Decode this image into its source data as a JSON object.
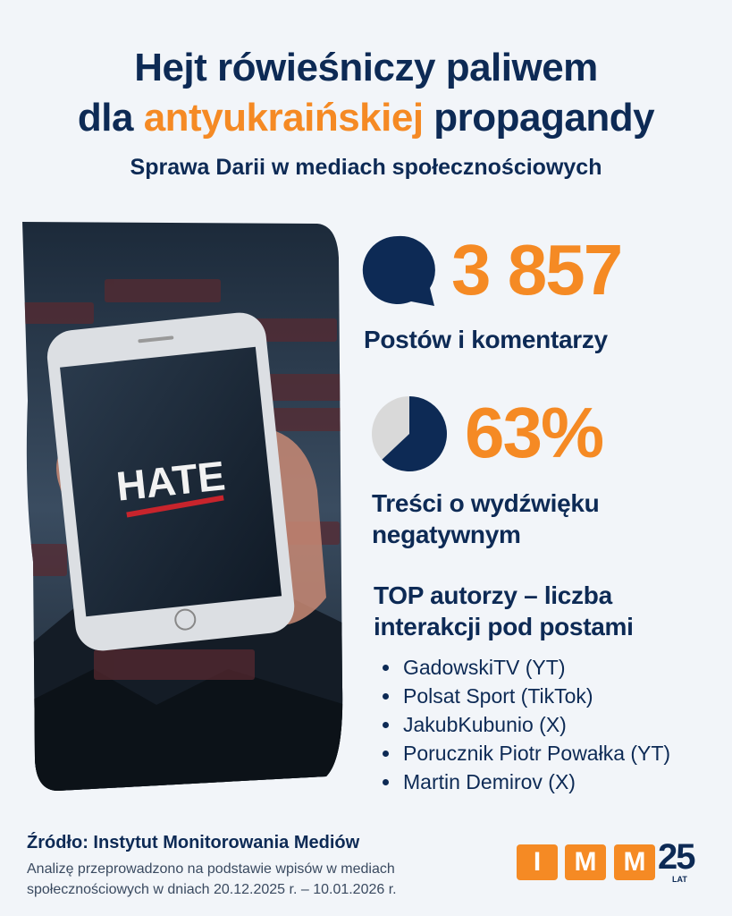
{
  "header": {
    "title_line1": "Hejt rówieśniczy paliwem",
    "title_line2_prefix": "dla ",
    "title_line2_highlight": "antyukraińskiej",
    "title_line2_suffix": " propagandy",
    "subtitle": "Sprawa Darii w mediach społecznościowych"
  },
  "image": {
    "screen_text": "HATE"
  },
  "stats": [
    {
      "value": "3 857",
      "label": "Postów i komentarzy",
      "icon": "speech-bubble-icon"
    },
    {
      "value": "63%",
      "label_line1": "Treści o wydźwięku",
      "label_line2": "negatywnym",
      "icon": "pie-chart-icon",
      "fraction": 0.63
    }
  ],
  "top_authors": {
    "heading_line1": "TOP autorzy – liczba",
    "heading_line2": "interakcji pod postami",
    "items": [
      "GadowskiTV (YT)",
      "Polsat Sport (TikTok)",
      "JakubKubunio (X)",
      "Porucznik Piotr Powałka (YT)",
      "Martin Demirov (X)"
    ]
  },
  "footer": {
    "source": "Źródło: Instytut Monitorowania Mediów",
    "note_line1": "Analizę przeprowadzono na podstawie wpisów w mediach",
    "note_line2": "społecznościowych w dniach 20.12.2025 r. – 10.01.2026 r.",
    "logo_letters": [
      "I",
      "M",
      "M"
    ],
    "logo_years": "25",
    "logo_years_unit": "LAT"
  },
  "colors": {
    "navy": "#0d2a55",
    "orange": "#f58a24",
    "pie_rest": "#d9d9d9",
    "background": "#f2f5f9"
  }
}
